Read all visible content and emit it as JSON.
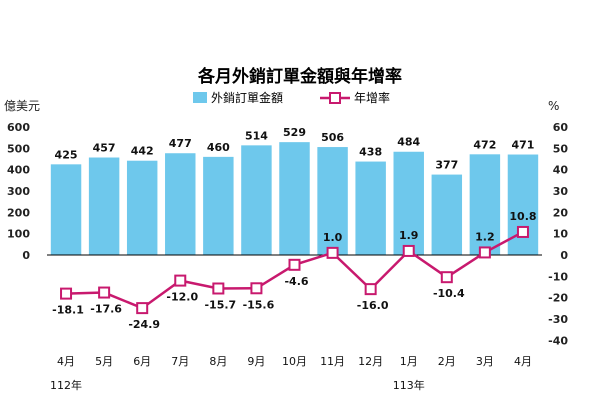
{
  "chart_data": {
    "type": "bar",
    "title": "各月外銷訂單金額與年增率",
    "left_unit": "億美元",
    "right_unit": "%",
    "categories": [
      "4月",
      "5月",
      "6月",
      "7月",
      "8月",
      "9月",
      "10月",
      "11月",
      "12月",
      "1月",
      "2月",
      "3月",
      "4月"
    ],
    "year_labels": [
      {
        "category_index": 0,
        "text": "112年"
      },
      {
        "category_index": 9,
        "text": "113年"
      }
    ],
    "left_axis": {
      "min": -400,
      "max": 600,
      "ticks": [
        600,
        500,
        400,
        300,
        200,
        100,
        0
      ],
      "tick_labels": [
        "600",
        "500",
        "400",
        "300",
        "200",
        "100",
        "0"
      ]
    },
    "right_axis": {
      "min": -40,
      "max": 60,
      "ticks": [
        60,
        50,
        40,
        30,
        20,
        10,
        0,
        -10,
        -20,
        -30,
        -40
      ],
      "tick_labels": [
        "60",
        "50",
        "40",
        "30",
        "20",
        "10",
        "0",
        "-10",
        "-20",
        "-30",
        "-40"
      ]
    },
    "series": [
      {
        "name": "外銷訂單金額",
        "type": "bar",
        "axis": "left",
        "color": "#6ec8ec",
        "values": [
          425,
          457,
          442,
          477,
          460,
          514,
          529,
          506,
          438,
          484,
          377,
          472,
          471
        ],
        "labels": [
          "425",
          "457",
          "442",
          "477",
          "460",
          "514",
          "529",
          "506",
          "438",
          "484",
          "377",
          "472",
          "471"
        ]
      },
      {
        "name": "年增率",
        "type": "line",
        "axis": "right",
        "color": "#c8196e",
        "values": [
          -18.1,
          -17.6,
          -24.9,
          -12.0,
          -15.7,
          -15.6,
          -4.6,
          1.0,
          -16.0,
          1.9,
          -10.4,
          1.2,
          10.8
        ],
        "labels": [
          "-18.1",
          "-17.6",
          "-24.9",
          "-12.0",
          "-15.7",
          "-15.6",
          "-4.6",
          "1.0",
          "-16.0",
          "1.9",
          "-10.4",
          "1.2",
          "10.8"
        ]
      }
    ],
    "grid": false,
    "legend_position": "top"
  }
}
